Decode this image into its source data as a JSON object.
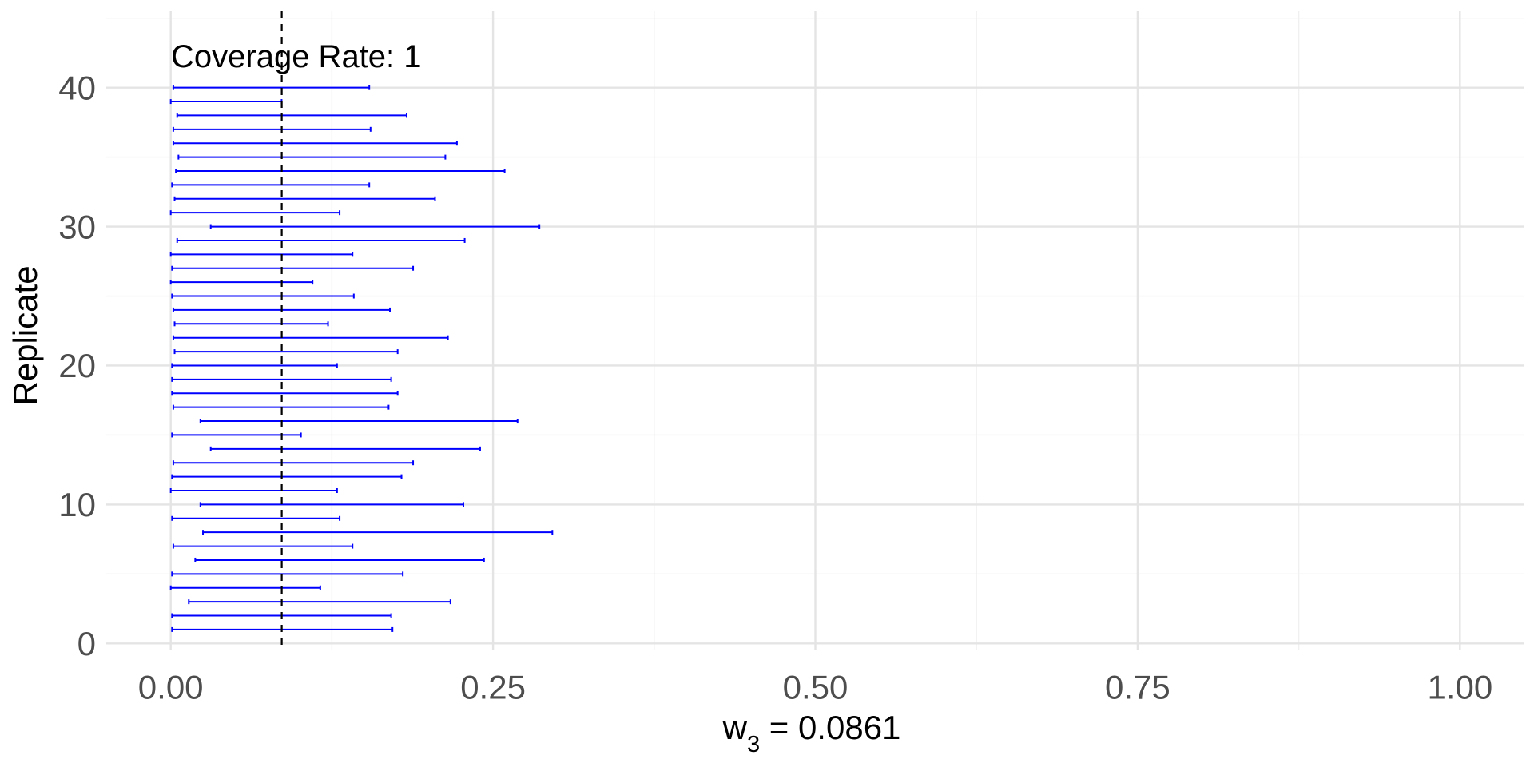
{
  "chart_data": {
    "type": "interval",
    "title": "",
    "annotation": "Coverage Rate: 1",
    "xlabel": {
      "main": "w",
      "subscript": "3",
      "rest": " = 0.0861"
    },
    "ylabel": "Replicate",
    "reference_line": {
      "x": 0.0861,
      "style": "dashed",
      "color": "#000000"
    },
    "xlim": [
      -0.05,
      1.05
    ],
    "ylim": [
      -0.5,
      45.5
    ],
    "x_ticks": [
      0,
      0.25,
      0.5,
      0.75,
      1.0
    ],
    "x_tick_labels": [
      "0.00",
      "0.25",
      "0.50",
      "0.75",
      "1.00"
    ],
    "y_ticks": [
      0,
      10,
      20,
      30,
      40
    ],
    "y_tick_labels": [
      "0",
      "10",
      "20",
      "30",
      "40"
    ],
    "grid": true,
    "interval_color": "#0000ff",
    "intervals": [
      {
        "replicate": 1,
        "lower": 0.001,
        "upper": 0.172
      },
      {
        "replicate": 2,
        "lower": 0.001,
        "upper": 0.171
      },
      {
        "replicate": 3,
        "lower": 0.014,
        "upper": 0.217
      },
      {
        "replicate": 4,
        "lower": 0.0,
        "upper": 0.116
      },
      {
        "replicate": 5,
        "lower": 0.001,
        "upper": 0.18
      },
      {
        "replicate": 6,
        "lower": 0.019,
        "upper": 0.243
      },
      {
        "replicate": 7,
        "lower": 0.002,
        "upper": 0.141
      },
      {
        "replicate": 8,
        "lower": 0.025,
        "upper": 0.296
      },
      {
        "replicate": 9,
        "lower": 0.001,
        "upper": 0.131
      },
      {
        "replicate": 10,
        "lower": 0.023,
        "upper": 0.227
      },
      {
        "replicate": 11,
        "lower": 0.0,
        "upper": 0.129
      },
      {
        "replicate": 12,
        "lower": 0.001,
        "upper": 0.179
      },
      {
        "replicate": 13,
        "lower": 0.002,
        "upper": 0.188
      },
      {
        "replicate": 14,
        "lower": 0.031,
        "upper": 0.24
      },
      {
        "replicate": 15,
        "lower": 0.001,
        "upper": 0.101
      },
      {
        "replicate": 16,
        "lower": 0.023,
        "upper": 0.269
      },
      {
        "replicate": 17,
        "lower": 0.002,
        "upper": 0.169
      },
      {
        "replicate": 18,
        "lower": 0.001,
        "upper": 0.176
      },
      {
        "replicate": 19,
        "lower": 0.001,
        "upper": 0.171
      },
      {
        "replicate": 20,
        "lower": 0.001,
        "upper": 0.129
      },
      {
        "replicate": 21,
        "lower": 0.003,
        "upper": 0.176
      },
      {
        "replicate": 22,
        "lower": 0.002,
        "upper": 0.215
      },
      {
        "replicate": 23,
        "lower": 0.003,
        "upper": 0.122
      },
      {
        "replicate": 24,
        "lower": 0.002,
        "upper": 0.17
      },
      {
        "replicate": 25,
        "lower": 0.001,
        "upper": 0.142
      },
      {
        "replicate": 26,
        "lower": 0.0,
        "upper": 0.11
      },
      {
        "replicate": 27,
        "lower": 0.001,
        "upper": 0.188
      },
      {
        "replicate": 28,
        "lower": 0.0,
        "upper": 0.141
      },
      {
        "replicate": 29,
        "lower": 0.005,
        "upper": 0.228
      },
      {
        "replicate": 30,
        "lower": 0.031,
        "upper": 0.286
      },
      {
        "replicate": 31,
        "lower": 0.0,
        "upper": 0.131
      },
      {
        "replicate": 32,
        "lower": 0.003,
        "upper": 0.205
      },
      {
        "replicate": 33,
        "lower": 0.001,
        "upper": 0.154
      },
      {
        "replicate": 34,
        "lower": 0.004,
        "upper": 0.259
      },
      {
        "replicate": 35,
        "lower": 0.006,
        "upper": 0.213
      },
      {
        "replicate": 36,
        "lower": 0.002,
        "upper": 0.222
      },
      {
        "replicate": 37,
        "lower": 0.002,
        "upper": 0.155
      },
      {
        "replicate": 38,
        "lower": 0.005,
        "upper": 0.183
      },
      {
        "replicate": 39,
        "lower": 0.0,
        "upper": 0.086
      },
      {
        "replicate": 40,
        "lower": 0.002,
        "upper": 0.154
      }
    ]
  }
}
